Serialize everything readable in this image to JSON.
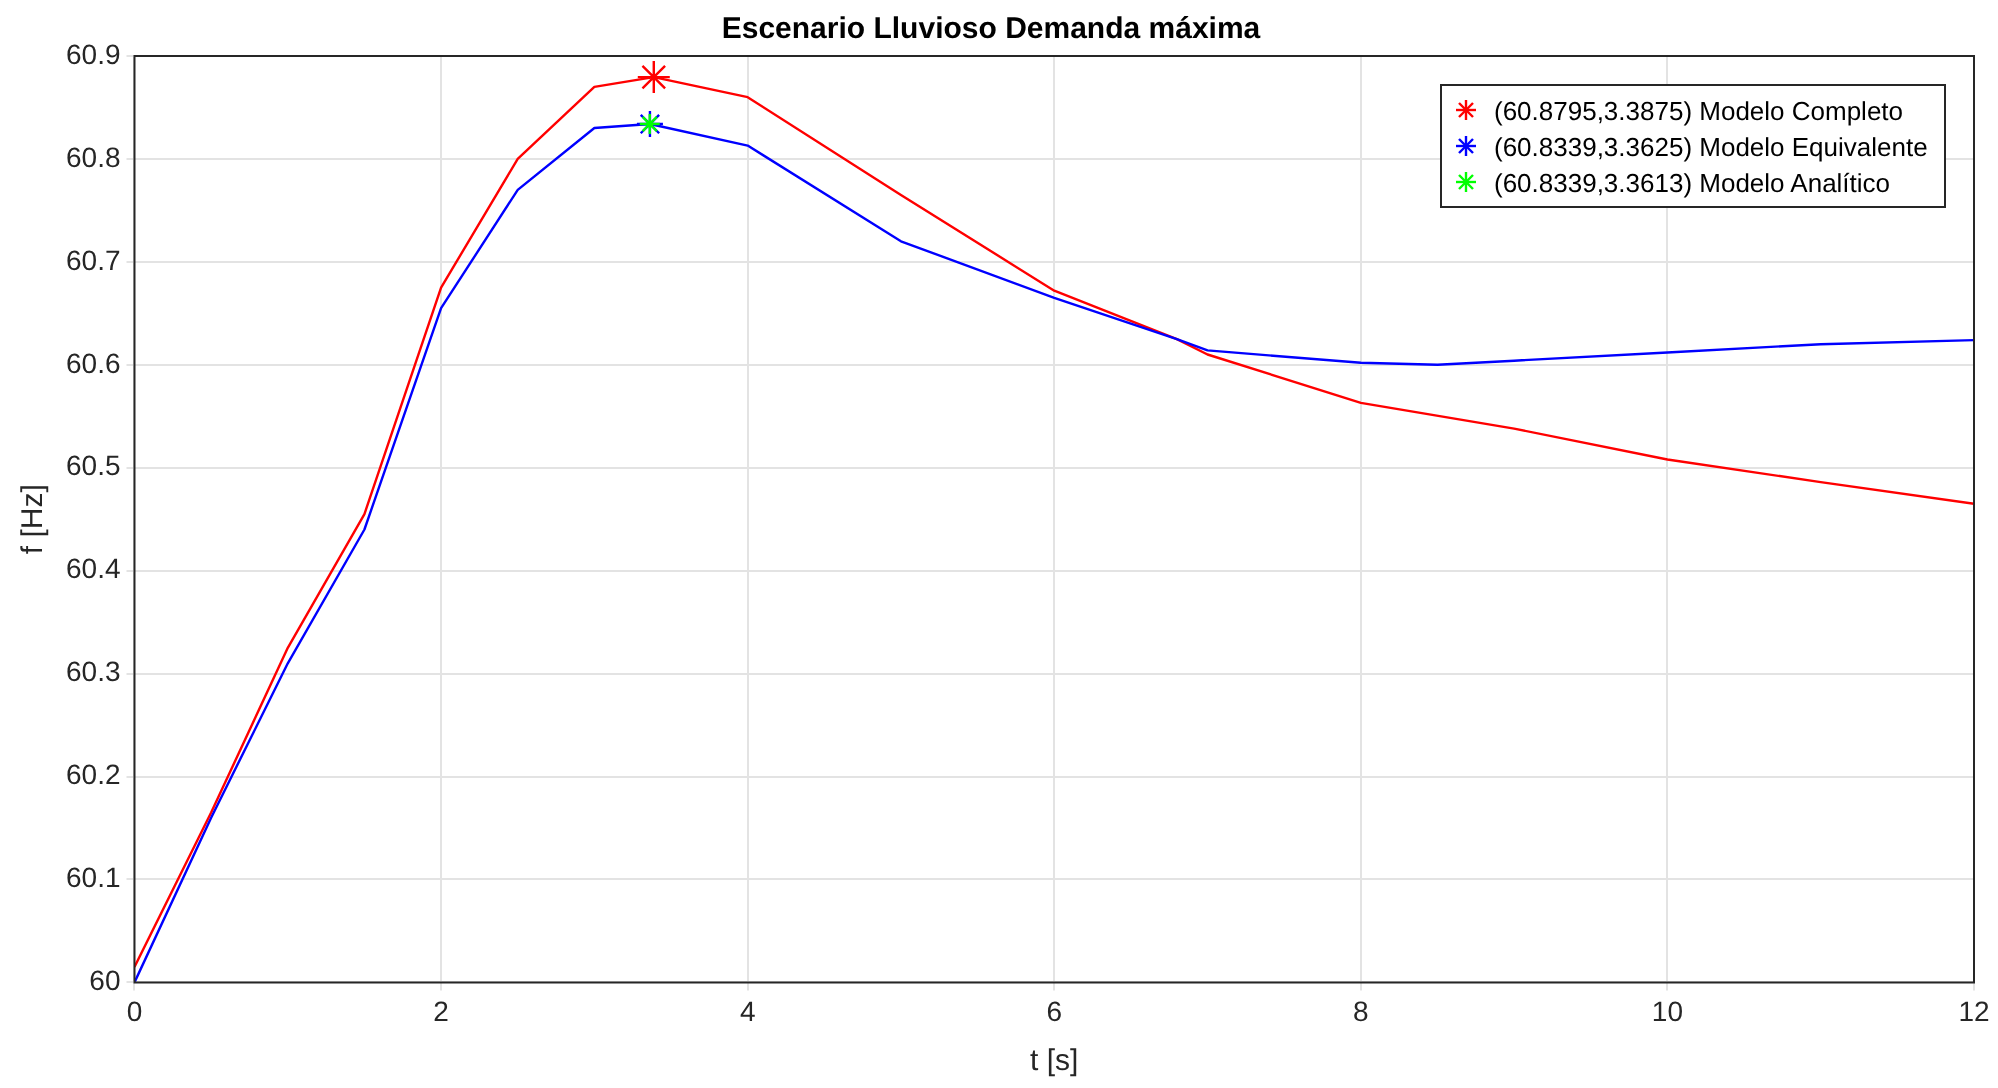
{
  "chart_data": {
    "type": "line",
    "title": "Escenario Lluvioso Demanda máxima",
    "xlabel": "t [s]",
    "ylabel": "f [Hz]",
    "xlim": [
      0,
      12
    ],
    "xticks": [
      0,
      2,
      4,
      6,
      8,
      10,
      12
    ],
    "ylim": [
      60,
      60.9
    ],
    "yticks": [
      60,
      60.1,
      60.2,
      60.3,
      60.4,
      60.5,
      60.6,
      60.7,
      60.8,
      60.9
    ],
    "grid": true,
    "legend": "top right",
    "marker": "none",
    "line_style": "solid",
    "series": [
      {
        "color": "#ff0000",
        "x": [
          0,
          0.5,
          1,
          1.5,
          2,
          2.5,
          3,
          3.3875,
          4,
          5,
          6,
          6.8,
          7,
          8,
          9,
          10,
          11,
          12
        ],
        "values": [
          60.015,
          60.165,
          60.325,
          60.455,
          60.675,
          60.8,
          60.87,
          60.8795,
          60.86,
          60.765,
          60.672,
          60.625,
          60.61,
          60.563,
          60.538,
          60.508,
          60.486,
          60.465
        ]
      },
      {
        "color": "#0000ff",
        "x": [
          0,
          0.5,
          1,
          1.5,
          2,
          2.5,
          3,
          3.3625,
          4,
          5,
          6,
          6.8,
          7,
          8,
          8.5,
          9,
          10,
          11,
          12
        ],
        "values": [
          60,
          60.16,
          60.31,
          60.44,
          60.655,
          60.77,
          60.83,
          60.8339,
          60.813,
          60.72,
          60.665,
          60.625,
          60.614,
          60.602,
          60.6,
          60.604,
          60.612,
          60.62,
          60.624
        ]
      },
      {
        "type": "scatter",
        "marker": "cross",
        "name": "(60.8795,3.3875) Modelo Completo",
        "color": "#ff0000",
        "x": [
          3.3875
        ],
        "values": [
          60.8795
        ]
      },
      {
        "type": "scatter",
        "marker": "cross",
        "name": "(60.8339,3.3625) Modelo Equivalente",
        "color": "#0000ff",
        "x": [
          3.3625
        ],
        "values": [
          60.8339
        ]
      },
      {
        "type": "scatter",
        "marker": "cross",
        "name": "(60.8339,3.3613) Modelo Analítico",
        "color": "#00ff00",
        "x": [
          3.3613
        ],
        "values": [
          60.8339
        ]
      }
    ]
  }
}
